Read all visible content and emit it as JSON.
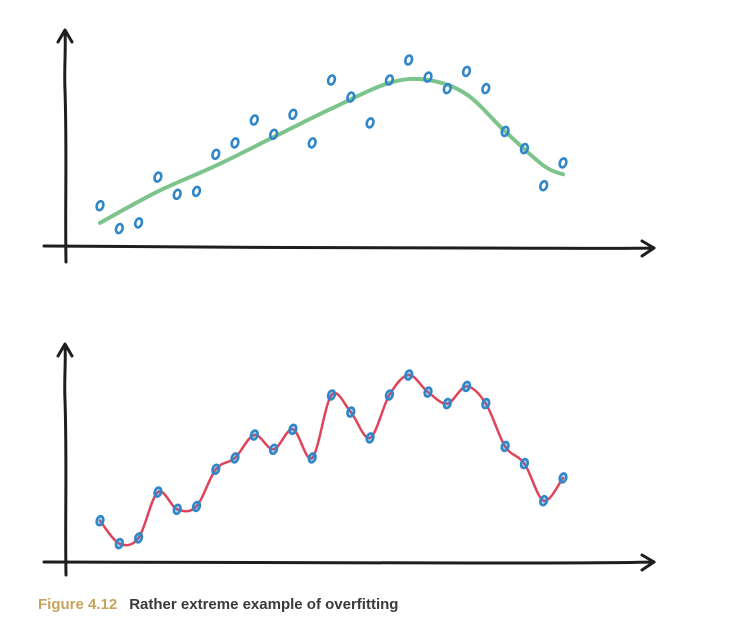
{
  "caption": {
    "figure_number": "Figure 4.12",
    "text": "Rather extreme example of overfitting"
  },
  "colors": {
    "axis": "#1e1e1e",
    "point": "#2f86c8",
    "smooth_fit": "#7cc48b",
    "overfit": "#e0445a",
    "caption_number": "#c9a25a",
    "caption_text": "#3a3a3a"
  },
  "chart_data": [
    {
      "type": "scatter",
      "fit": "smooth",
      "title": "",
      "xlabel": "",
      "ylabel": "",
      "axis_ticks": false,
      "points": [
        [
          1,
          3.2
        ],
        [
          2,
          2.4
        ],
        [
          3,
          2.6
        ],
        [
          4,
          4.2
        ],
        [
          5,
          3.6
        ],
        [
          6,
          3.7
        ],
        [
          7,
          5.0
        ],
        [
          8,
          5.4
        ],
        [
          9,
          6.2
        ],
        [
          10,
          5.7
        ],
        [
          11,
          6.4
        ],
        [
          12,
          5.4
        ],
        [
          13,
          7.6
        ],
        [
          14,
          7.0
        ],
        [
          15,
          6.1
        ],
        [
          16,
          7.6
        ],
        [
          17,
          8.3
        ],
        [
          18,
          7.7
        ],
        [
          19,
          7.3
        ],
        [
          20,
          7.9
        ],
        [
          21,
          7.3
        ],
        [
          22,
          5.8
        ],
        [
          23,
          5.2
        ],
        [
          24,
          3.9
        ],
        [
          25,
          4.7
        ]
      ],
      "curve": [
        [
          1,
          2.6
        ],
        [
          4,
          3.7
        ],
        [
          7,
          4.6
        ],
        [
          10,
          5.6
        ],
        [
          13,
          6.6
        ],
        [
          16,
          7.5
        ],
        [
          18,
          7.6
        ],
        [
          20,
          7.1
        ],
        [
          22,
          5.8
        ],
        [
          24,
          4.6
        ],
        [
          25,
          4.3
        ]
      ]
    },
    {
      "type": "scatter",
      "fit": "overfit",
      "title": "",
      "xlabel": "",
      "ylabel": "",
      "axis_ticks": false,
      "points": [
        [
          1,
          3.2
        ],
        [
          2,
          2.4
        ],
        [
          3,
          2.6
        ],
        [
          4,
          4.2
        ],
        [
          5,
          3.6
        ],
        [
          6,
          3.7
        ],
        [
          7,
          5.0
        ],
        [
          8,
          5.4
        ],
        [
          9,
          6.2
        ],
        [
          10,
          5.7
        ],
        [
          11,
          6.4
        ],
        [
          12,
          5.4
        ],
        [
          13,
          7.6
        ],
        [
          14,
          7.0
        ],
        [
          15,
          6.1
        ],
        [
          16,
          7.6
        ],
        [
          17,
          8.3
        ],
        [
          18,
          7.7
        ],
        [
          19,
          7.3
        ],
        [
          20,
          7.9
        ],
        [
          21,
          7.3
        ],
        [
          22,
          5.8
        ],
        [
          23,
          5.2
        ],
        [
          24,
          3.9
        ],
        [
          25,
          4.7
        ]
      ]
    }
  ]
}
